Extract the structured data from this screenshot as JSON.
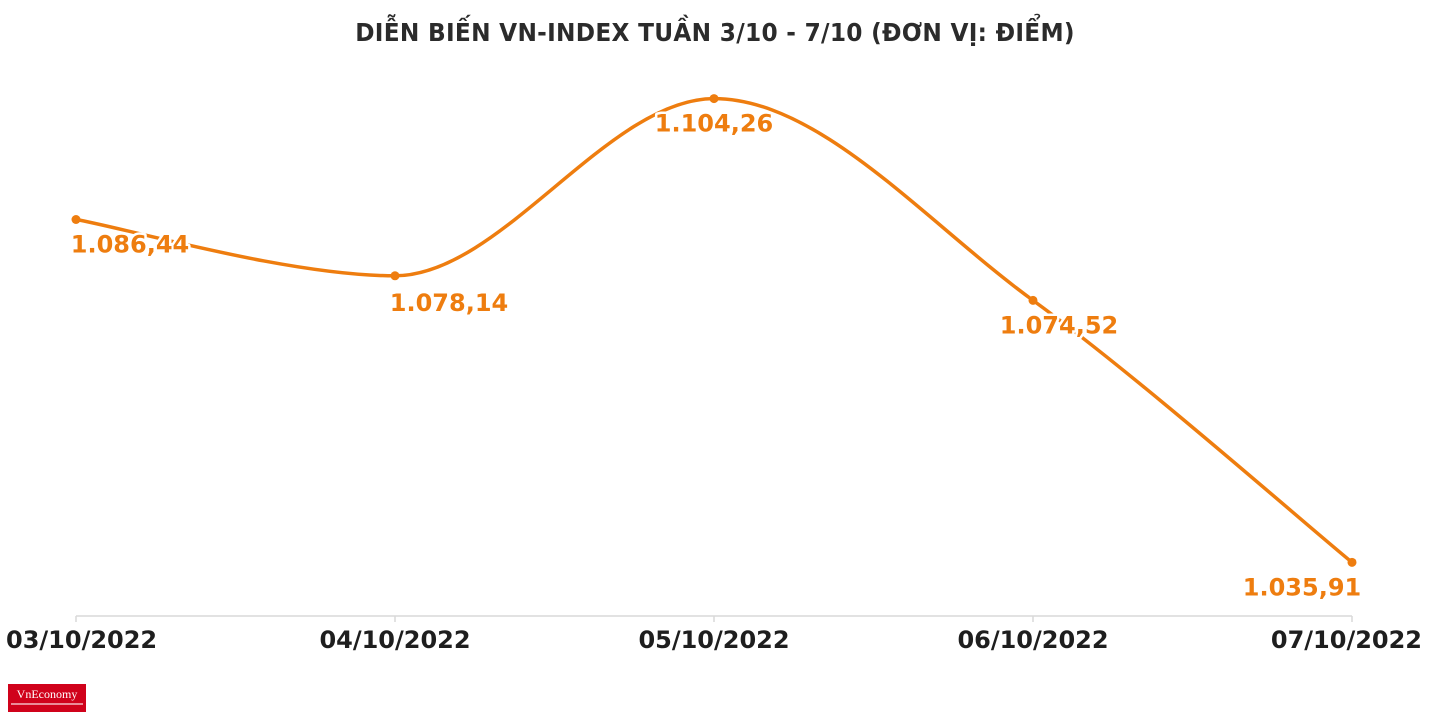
{
  "chart_data": {
    "type": "line",
    "title": "DIỄN BIẾN VN-INDEX TUẦN 3/10 - 7/10 (ĐƠN VỊ: ĐIỂM)",
    "categories": [
      "03/10/2022",
      "04/10/2022",
      "05/10/2022",
      "06/10/2022",
      "07/10/2022"
    ],
    "values": [
      1086.44,
      1078.14,
      1104.26,
      1074.52,
      1035.91
    ],
    "value_labels": [
      "1.086,44",
      "1.078,14",
      "1.104,26",
      "1.074,52",
      "1.035,91"
    ],
    "xlabel": "",
    "ylabel": "",
    "ylim": [
      1028,
      1107
    ],
    "grid": false,
    "legend": "none",
    "smooth": true
  },
  "colors": {
    "line": "#ee7d0f",
    "label": "#ee7d0f",
    "axis": "#d9d9d9",
    "title": "#2b2b2b",
    "logo": "#d0021b"
  },
  "logo": {
    "text": "VnEconomy"
  }
}
